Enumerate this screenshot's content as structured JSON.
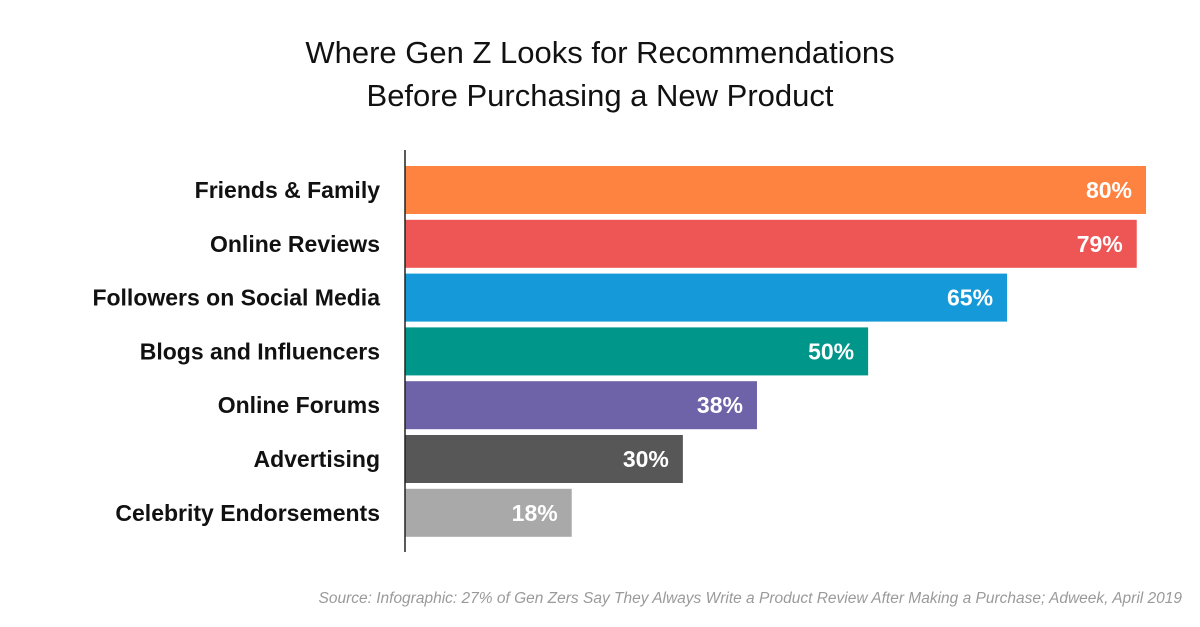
{
  "chart_data": {
    "type": "bar",
    "orientation": "horizontal",
    "title_lines": [
      "Where Gen Z Looks for Recommendations",
      "Before Purchasing a New Product"
    ],
    "categories": [
      "Friends & Family",
      "Online Reviews",
      "Followers on Social Media",
      "Blogs and Influencers",
      "Online Forums",
      "Advertising",
      "Celebrity Endorsements"
    ],
    "values": [
      80,
      79,
      65,
      50,
      38,
      30,
      18
    ],
    "value_labels": [
      "80%",
      "79%",
      "65%",
      "50%",
      "38%",
      "30%",
      "18%"
    ],
    "colors": [
      "#FF8340",
      "#EE5555",
      "#1699D8",
      "#00968A",
      "#6E62A8",
      "#575757",
      "#A9A9A9"
    ],
    "xlim": [
      0,
      80
    ],
    "grid": false,
    "legend": "none",
    "source": "Source: Infographic: 27% of Gen Zers Say They Always Write a Product Review After Making a Purchase; Adweek, April 2019"
  }
}
